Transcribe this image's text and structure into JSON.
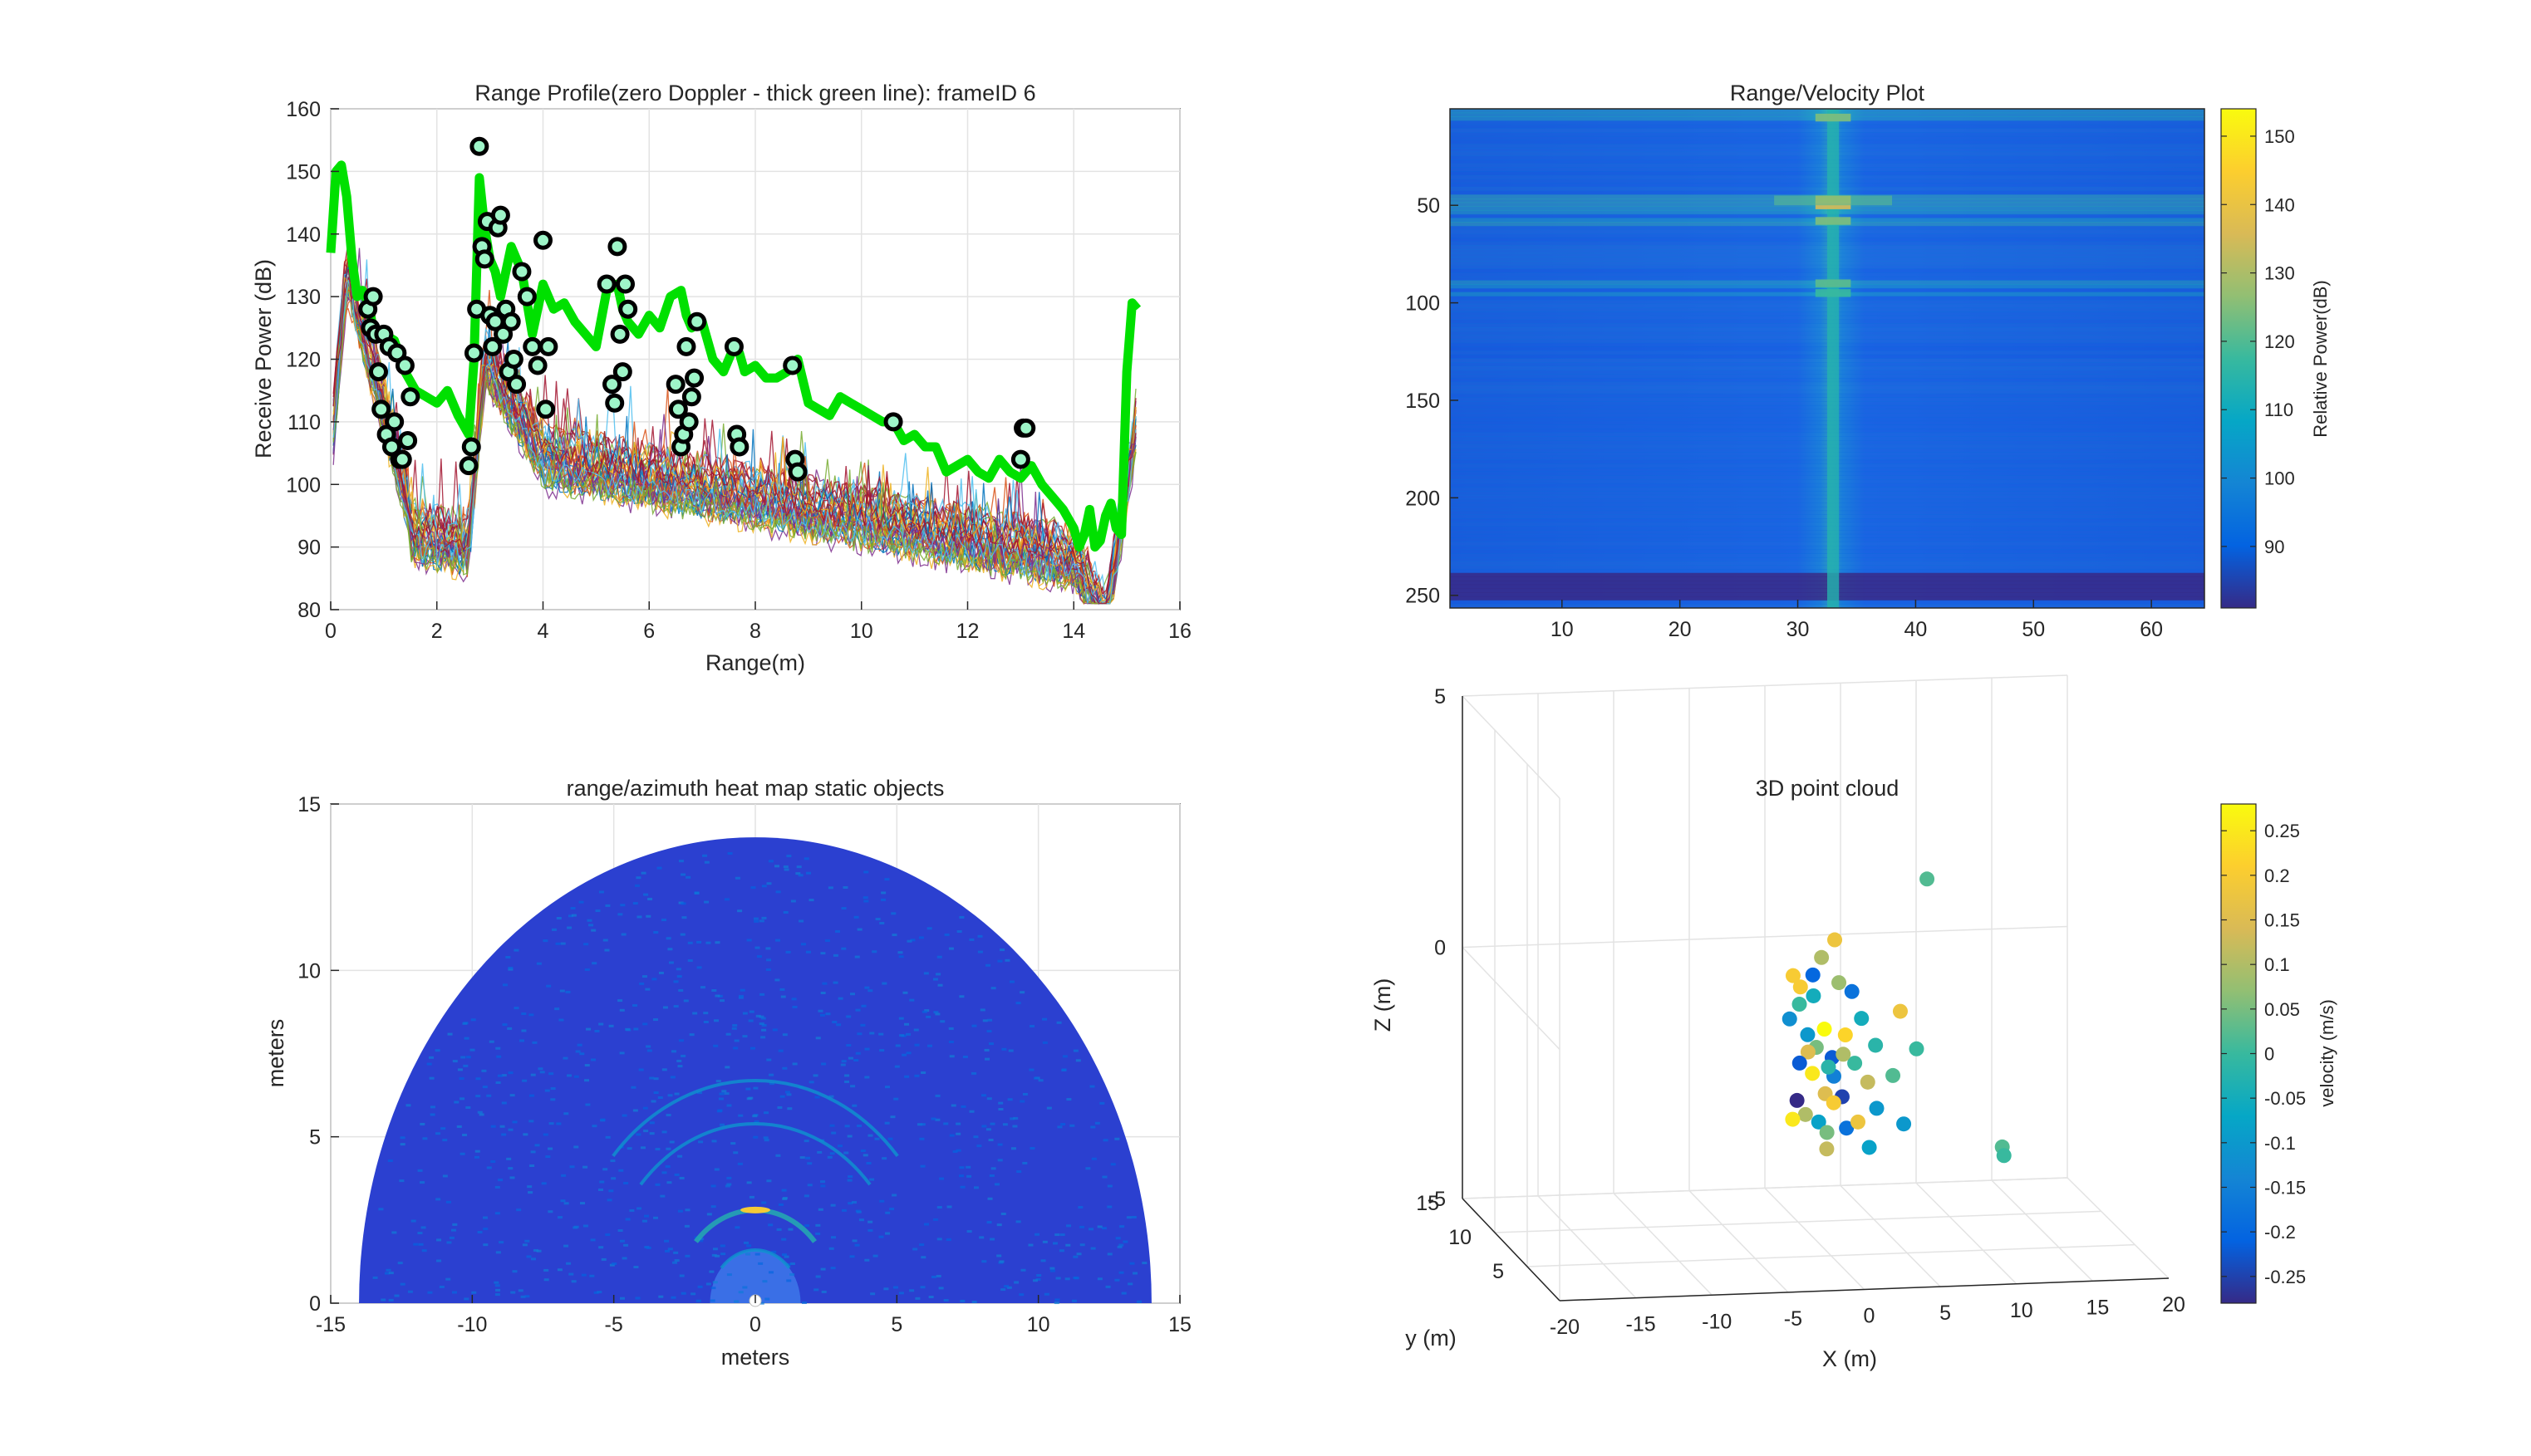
{
  "colors": {
    "green_line": "#00e000",
    "peak_marker_fill": "#9ef5c8",
    "peak_marker_edge": "#000000",
    "parula": [
      "#352a87",
      "#0363e1",
      "#1485d4",
      "#06a7c6",
      "#38b99e",
      "#92bf73",
      "#d9ba56",
      "#fcce2e",
      "#f9fb0e"
    ]
  },
  "chart_data": [
    {
      "type": "line",
      "title": "Range Profile(zero Doppler - thick green line): frameID 6",
      "xlabel": "Range(m)",
      "ylabel": "Receive Power (dB)",
      "xlim": [
        0,
        16
      ],
      "ylim": [
        80,
        160
      ],
      "xticks": [
        0,
        2,
        4,
        6,
        8,
        10,
        12,
        14,
        16
      ],
      "yticks": [
        80,
        90,
        100,
        110,
        120,
        130,
        140,
        150,
        160
      ],
      "grid": true,
      "series": [
        {
          "style": "thick green line",
          "x": [
            0.0,
            0.1,
            0.2,
            0.3,
            0.4,
            0.5,
            0.6,
            0.7,
            0.8,
            1.0,
            1.2,
            1.4,
            1.6,
            1.8,
            2.0,
            2.2,
            2.4,
            2.6,
            2.7,
            2.8,
            2.9,
            3.0,
            3.1,
            3.2,
            3.4,
            3.6,
            3.8,
            4.0,
            4.2,
            4.4,
            4.6,
            4.8,
            5.0,
            5.2,
            5.4,
            5.5,
            5.6,
            5.8,
            6.0,
            6.2,
            6.4,
            6.6,
            6.7,
            6.8,
            7.0,
            7.2,
            7.4,
            7.6,
            7.7,
            7.8,
            8.0,
            8.2,
            8.4,
            8.6,
            8.8,
            9.0,
            9.2,
            9.4,
            9.6,
            9.8,
            10.0,
            10.2,
            10.4,
            10.6,
            10.8,
            11.0,
            11.2,
            11.4,
            11.6,
            11.8,
            12.0,
            12.2,
            12.4,
            12.6,
            12.8,
            13.0,
            13.2,
            13.4,
            13.6,
            13.8,
            14.0,
            14.1,
            14.2,
            14.3,
            14.4,
            14.5,
            14.6,
            14.7,
            14.8,
            14.9,
            15.0,
            15.1,
            15.2
          ],
          "y": [
            137,
            150,
            151,
            146,
            136,
            130,
            131,
            129,
            125,
            124,
            123,
            118,
            115,
            114,
            113,
            115,
            111,
            108,
            120,
            149,
            141,
            136,
            134,
            130,
            138,
            134,
            124,
            132,
            128,
            129,
            126,
            124,
            122,
            131,
            132,
            128,
            126,
            124,
            127,
            125,
            130,
            131,
            127,
            125,
            126,
            120,
            118,
            122,
            121,
            118,
            119,
            117,
            117,
            118,
            120,
            113,
            112,
            111,
            114,
            113,
            112,
            111,
            110,
            110,
            107,
            108,
            106,
            106,
            102,
            103,
            104,
            102,
            101,
            104,
            102,
            101,
            103,
            100,
            98,
            96,
            93,
            90,
            92,
            96,
            90,
            91,
            95,
            97,
            93,
            92,
            118,
            129,
            128
          ]
        }
      ],
      "peak_markers": {
        "x": [
          0.7,
          0.75,
          0.8,
          0.85,
          0.9,
          0.95,
          1.0,
          1.05,
          1.1,
          1.15,
          1.2,
          1.25,
          1.3,
          1.35,
          1.4,
          1.45,
          1.5,
          2.6,
          2.65,
          2.7,
          2.75,
          2.8,
          2.85,
          2.9,
          2.95,
          3.0,
          3.05,
          3.1,
          3.15,
          3.2,
          3.25,
          3.3,
          3.35,
          3.4,
          3.45,
          3.5,
          3.6,
          3.7,
          3.8,
          3.9,
          4.0,
          4.05,
          4.1,
          5.2,
          5.3,
          5.35,
          5.4,
          5.45,
          5.5,
          5.55,
          5.6,
          6.5,
          6.55,
          6.6,
          6.65,
          6.7,
          6.75,
          6.8,
          6.85,
          6.9,
          7.6,
          7.65,
          7.7,
          8.7,
          8.75,
          8.8,
          10.6,
          13.0,
          13.05,
          13.1
        ],
        "y": [
          128,
          125,
          130,
          124,
          118,
          112,
          124,
          108,
          122,
          106,
          110,
          121,
          104,
          104,
          119,
          107,
          114,
          103,
          106,
          121,
          128,
          154,
          138,
          136,
          142,
          127,
          122,
          126,
          141,
          143,
          124,
          128,
          118,
          126,
          120,
          116,
          134,
          130,
          122,
          119,
          139,
          112,
          122,
          132,
          116,
          113,
          138,
          124,
          118,
          132,
          128,
          116,
          112,
          106,
          108,
          122,
          110,
          114,
          117,
          126,
          122,
          108,
          106,
          119,
          104,
          102,
          110,
          104,
          109,
          109
        ]
      },
      "clutter_curves": "many thin multi-colored lines between ~82 dB and ~138 dB following the green profile"
    },
    {
      "type": "heatmap",
      "title": "Range/Velocity Plot",
      "xticks": [
        10,
        20,
        30,
        40,
        50,
        60
      ],
      "yticks": [
        50,
        100,
        150,
        200,
        250
      ],
      "xlim": [
        0.5,
        64.5
      ],
      "ylim": [
        0.5,
        256.5
      ],
      "y_reversed": true,
      "colorbar": {
        "label": "Relative Power(dB)",
        "ticks": [
          90,
          100,
          110,
          120,
          130,
          140,
          150
        ],
        "range": [
          81,
          154
        ]
      },
      "features": {
        "zero_doppler_column": 33,
        "bright_range_rows": [
          5,
          47,
          52,
          58,
          90,
          95
        ]
      }
    },
    {
      "type": "heatmap",
      "title": "range/azimuth heat map static objects",
      "xlabel": "meters",
      "ylabel": "meters",
      "xlim": [
        -15,
        15
      ],
      "ylim": [
        0,
        15
      ],
      "xticks": [
        -15,
        -10,
        -5,
        0,
        5,
        10,
        15
      ],
      "yticks": [
        0,
        5,
        10,
        15
      ],
      "grid": true,
      "features": {
        "max_range_m": 14,
        "rings_m": [
          1.6,
          2.8,
          5.4,
          6.7
        ]
      }
    },
    {
      "type": "scatter",
      "title": "3D point cloud",
      "xlabel": "X (m)",
      "ylabel": "y (m)",
      "zlabel": "Z (m)",
      "xlim": [
        -20,
        20
      ],
      "ylim": [
        0,
        15
      ],
      "zlim": [
        -5,
        5
      ],
      "xticks": [
        -20,
        -15,
        -10,
        -5,
        0,
        5,
        10,
        15,
        20
      ],
      "yticks": [
        5,
        10,
        15
      ],
      "zticks": [
        -5,
        0,
        5
      ],
      "colorbar": {
        "label": "velocity (m/s)",
        "ticks": [
          -0.25,
          -0.2,
          -0.15,
          -0.1,
          -0.05,
          0,
          0.05,
          0.1,
          0.15,
          0.2,
          0.25
        ],
        "tick_labels": [
          "-0.25",
          "-0.2",
          "-0.15",
          "-0.1",
          "-0.05",
          "0",
          "0.05",
          "0.1",
          "0.15",
          "0.2",
          "0.25"
        ],
        "range": [
          -0.28,
          0.28
        ]
      },
      "points": [
        [
          -2.0,
          5.2,
          0.0,
          0.0
        ],
        [
          -1.8,
          5.5,
          0.3,
          0.2
        ],
        [
          -1.2,
          5.0,
          0.6,
          -0.2
        ],
        [
          -0.5,
          5.3,
          0.9,
          0.1
        ],
        [
          0.5,
          5.6,
          1.2,
          0.18
        ],
        [
          -1.5,
          5.1,
          -0.6,
          -0.1
        ],
        [
          -0.8,
          5.4,
          -0.9,
          0.05
        ],
        [
          0.2,
          5.3,
          -1.1,
          -0.22
        ],
        [
          1.2,
          5.6,
          -0.7,
          0.22
        ],
        [
          2.0,
          5.0,
          -0.3,
          -0.05
        ],
        [
          -0.3,
          5.2,
          -1.8,
          0.15
        ],
        [
          0.4,
          5.5,
          -1.5,
          -0.15
        ],
        [
          -1.1,
          5.3,
          -1.4,
          0.25
        ],
        [
          1.6,
          5.1,
          -1.2,
          0.0
        ],
        [
          0.9,
          5.4,
          -1.9,
          -0.25
        ],
        [
          -1.6,
          5.2,
          -2.2,
          0.1
        ],
        [
          -0.6,
          5.5,
          -2.4,
          -0.08
        ],
        [
          0.3,
          5.3,
          -2.0,
          0.2
        ],
        [
          1.1,
          5.2,
          -2.5,
          -0.18
        ],
        [
          -0.1,
          5.4,
          -2.6,
          0.05
        ],
        [
          -2.2,
          5.1,
          -1.9,
          -0.28
        ],
        [
          -2.4,
          5.3,
          -2.3,
          0.25
        ],
        [
          2.5,
          5.2,
          -1.6,
          0.12
        ],
        [
          3.1,
          5.4,
          -0.9,
          -0.02
        ],
        [
          3.0,
          5.0,
          -2.1,
          -0.1
        ],
        [
          4.2,
          5.3,
          -1.5,
          0.02
        ],
        [
          4.6,
          5.1,
          -0.2,
          0.18
        ],
        [
          5.0,
          5.5,
          -2.5,
          -0.1
        ],
        [
          5.8,
          5.4,
          -1.0,
          0.0
        ],
        [
          6.4,
          5.2,
          2.4,
          0.02
        ],
        [
          11.4,
          5.3,
          -3.0,
          0.02
        ],
        [
          11.6,
          5.5,
          -3.2,
          0.0
        ],
        [
          -2.5,
          5.0,
          0.6,
          0.2
        ],
        [
          -2.6,
          5.3,
          -0.3,
          -0.12
        ],
        [
          -0.9,
          5.6,
          0.1,
          -0.05
        ],
        [
          0.6,
          5.2,
          0.4,
          0.08
        ],
        [
          1.5,
          5.3,
          0.2,
          -0.18
        ],
        [
          -0.4,
          5.1,
          -0.5,
          0.28
        ],
        [
          0.0,
          5.4,
          -1.3,
          -0.02
        ],
        [
          -1.3,
          5.5,
          -1.0,
          0.15
        ],
        [
          0.8,
          5.0,
          -1.0,
          0.1
        ],
        [
          -0.2,
          5.2,
          -2.9,
          0.12
        ],
        [
          -1.9,
          5.4,
          -1.2,
          -0.22
        ],
        [
          1.9,
          5.3,
          -2.4,
          0.18
        ],
        [
          2.6,
          5.2,
          -2.9,
          -0.08
        ]
      ]
    }
  ]
}
